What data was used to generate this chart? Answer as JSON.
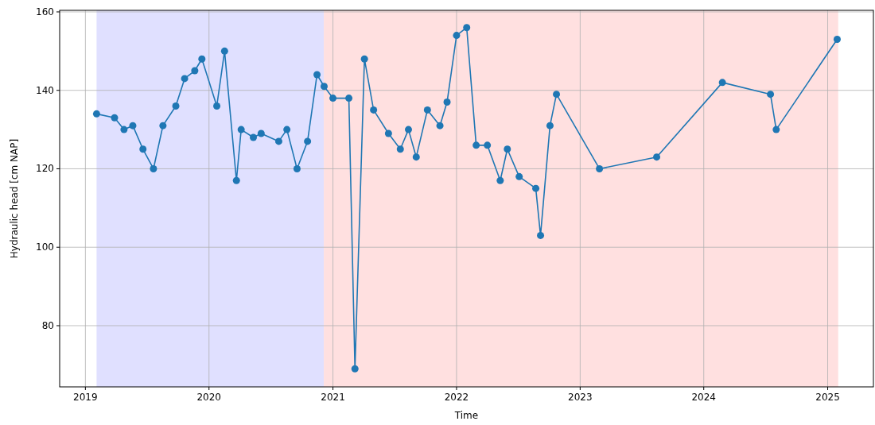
{
  "chart_data": {
    "type": "line",
    "xlabel": "Time",
    "ylabel": "Hydraulic head [cm NAP]",
    "xlim": [
      "2018-10-17",
      "2025-05-16"
    ],
    "xticks": [
      {
        "value": "2019",
        "label": "2019"
      },
      {
        "value": "2020",
        "label": "2020"
      },
      {
        "value": "2021",
        "label": "2021"
      },
      {
        "value": "2022",
        "label": "2022"
      },
      {
        "value": "2023",
        "label": "2023"
      },
      {
        "value": "2024",
        "label": "2024"
      },
      {
        "value": "2025",
        "label": "2025"
      }
    ],
    "ylim": [
      64.4,
      160.4
    ],
    "yticks": [
      80,
      100,
      120,
      140,
      160
    ],
    "grid": true,
    "marker": "circle",
    "line_style": "solid",
    "bands": [
      {
        "axis": "x",
        "from": "2019-02-03",
        "to": "2020-12-05",
        "color": "#e0e0ff"
      },
      {
        "axis": "x",
        "from": "2020-12-05",
        "to": "2025-02-01",
        "color": "#ffe0e0"
      }
    ],
    "x": [
      "2019-02-03",
      "2019-03-28",
      "2019-04-25",
      "2019-05-21",
      "2019-06-20",
      "2019-07-21",
      "2019-08-18",
      "2019-09-25",
      "2019-10-21",
      "2019-11-20",
      "2019-12-11",
      "2020-01-24",
      "2020-02-16",
      "2020-03-22",
      "2020-04-05",
      "2020-05-11",
      "2020-06-03",
      "2020-07-25",
      "2020-08-18",
      "2020-09-17",
      "2020-10-18",
      "2020-11-15",
      "2020-12-06",
      "2021-01-01",
      "2021-02-17",
      "2021-03-07",
      "2021-04-04",
      "2021-05-01",
      "2021-06-14",
      "2021-07-19",
      "2021-08-12",
      "2021-09-04",
      "2021-10-07",
      "2021-11-13",
      "2021-12-04",
      "2022-01-01",
      "2022-01-31",
      "2022-02-28",
      "2022-04-02",
      "2022-05-10",
      "2022-05-31",
      "2022-07-05",
      "2022-08-23",
      "2022-09-06",
      "2022-10-04",
      "2022-10-23",
      "2023-02-27",
      "2023-08-15",
      "2024-02-25",
      "2024-07-16",
      "2024-08-02",
      "2025-01-29"
    ],
    "series": [
      {
        "color": "#1f77b4",
        "values": [
          134,
          133,
          130,
          131,
          125,
          120,
          131,
          136,
          143,
          145,
          148,
          136,
          150,
          117,
          130,
          128,
          129,
          127,
          130,
          120,
          127,
          144,
          141,
          138,
          138,
          69,
          148,
          135,
          129,
          125,
          130,
          123,
          135,
          131,
          137,
          154,
          156,
          126,
          126,
          117,
          125,
          118,
          115,
          103,
          131,
          139,
          120,
          123,
          142,
          139,
          130,
          153
        ]
      }
    ]
  }
}
